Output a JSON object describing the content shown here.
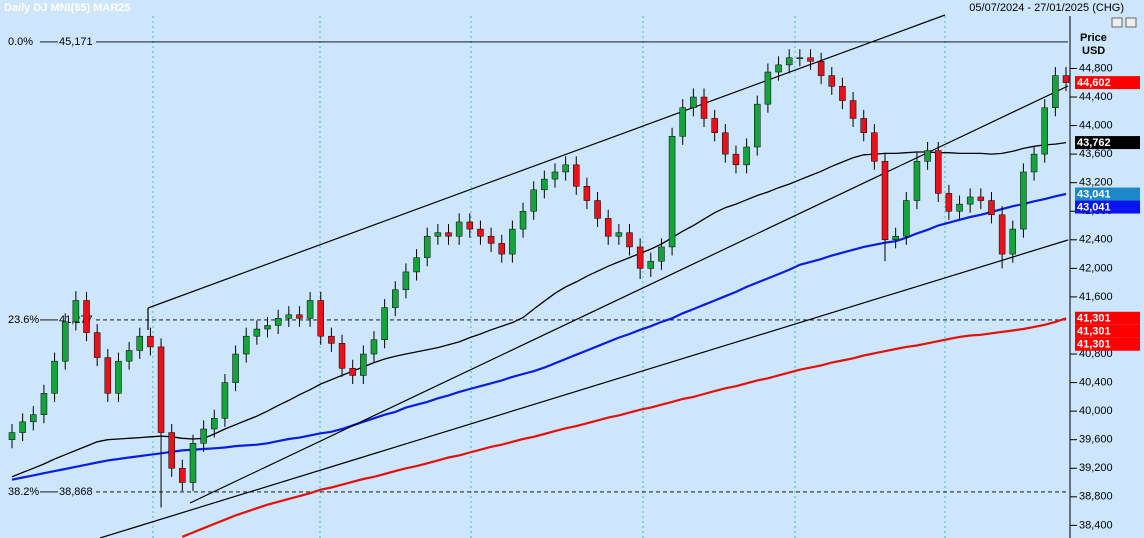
{
  "chart_data": {
    "type": "candlestick",
    "title": "Daily DJ MNI($5) MAR25",
    "date_range": "05/07/2024 - 27/01/2025 (CHG)",
    "y_axis_label": [
      "Price",
      "USD"
    ],
    "ylim": [
      38223,
      45759
    ],
    "yticks": [
      {
        "value": 38400,
        "label": "38,400"
      },
      {
        "value": 38800,
        "label": "38,800"
      },
      {
        "value": 39200,
        "label": "39,200"
      },
      {
        "value": 39600,
        "label": "39,600"
      },
      {
        "value": 40000,
        "label": "40,000"
      },
      {
        "value": 40400,
        "label": "40,400"
      },
      {
        "value": 40800,
        "label": "40,800"
      },
      {
        "value": 41600,
        "label": "41,600"
      },
      {
        "value": 42000,
        "label": "42,000"
      },
      {
        "value": 42400,
        "label": "42,400"
      },
      {
        "value": 42800,
        "label": "42,800"
      },
      {
        "value": 43200,
        "label": "43,200"
      },
      {
        "value": 43600,
        "label": "43,600"
      },
      {
        "value": 44000,
        "label": "44,000"
      },
      {
        "value": 44400,
        "label": "44,400"
      },
      {
        "value": 44800,
        "label": "44,800"
      }
    ],
    "up_color": "#16a33c",
    "down_color": "#e8121a",
    "open": [
      39600,
      39700,
      39850,
      39950,
      40250,
      40700,
      41250,
      41550,
      41100,
      40750,
      40250,
      40700,
      40850,
      41050,
      40900,
      39700,
      39200,
      39000,
      39550,
      39750,
      39900,
      40400,
      40800,
      41050,
      41150,
      41200,
      41300,
      41350,
      41300,
      41550,
      41050,
      40950,
      40600,
      40500,
      40800,
      41000,
      41450,
      41700,
      41950,
      42150,
      42450,
      42500,
      42450,
      42650,
      42550,
      42450,
      42350,
      42200,
      42550,
      42800,
      43100,
      43250,
      43350,
      43450,
      43150,
      42950,
      42700,
      42450,
      42500,
      42300,
      42000,
      42100,
      42300,
      43850,
      44250,
      44400,
      44100,
      43900,
      43600,
      43450,
      43700,
      44300,
      44750,
      44850,
      44950,
      44950,
      44900,
      44700,
      44550,
      44350,
      44100,
      43900,
      43500,
      42400,
      42450,
      42950,
      43500,
      43650,
      43050,
      42800,
      42900,
      43000,
      42950,
      42750,
      42200,
      42550,
      43350,
      43600,
      44250,
      44700
    ],
    "high": [
      39820,
      39970,
      40070,
      40370,
      40820,
      41370,
      41680,
      41670,
      41220,
      40870,
      40820,
      40970,
      41170,
      41170,
      41020,
      39820,
      39320,
      39670,
      39870,
      40020,
      40520,
      40920,
      41170,
      41270,
      41320,
      41420,
      41470,
      41470,
      41670,
      41670,
      41170,
      41070,
      40720,
      40920,
      41120,
      41570,
      41820,
      42070,
      42270,
      42570,
      42620,
      42620,
      42770,
      42770,
      42670,
      42570,
      42470,
      42670,
      42920,
      43220,
      43370,
      43470,
      43570,
      43570,
      43270,
      43070,
      42820,
      42620,
      42620,
      42420,
      42220,
      42420,
      43970,
      44370,
      44520,
      44520,
      44220,
      44020,
      43720,
      43820,
      44420,
      44870,
      44970,
      45070,
      45070,
      45070,
      45020,
      44820,
      44670,
      44470,
      44220,
      44020,
      43620,
      42570,
      43070,
      43620,
      43770,
      43770,
      43170,
      43020,
      43120,
      43120,
      43070,
      42870,
      42670,
      43470,
      43720,
      44370,
      44820,
      44820
    ],
    "low": [
      39480,
      39580,
      39730,
      39830,
      40130,
      40580,
      41130,
      40980,
      40630,
      40130,
      40130,
      40580,
      40730,
      40780,
      38650,
      39080,
      38880,
      38880,
      39430,
      39630,
      39780,
      40280,
      40680,
      40930,
      41030,
      41080,
      41180,
      41180,
      41180,
      40930,
      40830,
      40480,
      40380,
      40380,
      40680,
      40880,
      41330,
      41580,
      41830,
      42030,
      42330,
      42330,
      42330,
      42430,
      42330,
      42230,
      42080,
      42080,
      42430,
      42680,
      42980,
      43130,
      43230,
      43030,
      42830,
      42580,
      42330,
      42330,
      42180,
      41850,
      41880,
      41980,
      42180,
      43730,
      44130,
      43980,
      43780,
      43480,
      43330,
      43330,
      43580,
      44180,
      44630,
      44730,
      44830,
      44780,
      44580,
      44430,
      44230,
      43980,
      43780,
      43380,
      42100,
      42280,
      42330,
      42830,
      43380,
      42930,
      42680,
      42680,
      42780,
      42830,
      42630,
      42000,
      42080,
      42430,
      43230,
      43480,
      44130,
      44482
    ],
    "close": [
      39700,
      39850,
      39950,
      40250,
      40700,
      41250,
      41550,
      41100,
      40750,
      40250,
      40700,
      40850,
      41050,
      40900,
      39700,
      39200,
      39000,
      39550,
      39750,
      39900,
      40400,
      40800,
      41050,
      41150,
      41200,
      41300,
      41350,
      41300,
      41550,
      41050,
      40950,
      40600,
      40500,
      40800,
      41000,
      41450,
      41700,
      41950,
      42150,
      42450,
      42500,
      42450,
      42650,
      42550,
      42450,
      42350,
      42200,
      42550,
      42800,
      43100,
      43250,
      43350,
      43450,
      43150,
      42950,
      42700,
      42450,
      42500,
      42300,
      42000,
      42100,
      42300,
      43850,
      44250,
      44400,
      44100,
      43900,
      43600,
      43450,
      43700,
      44300,
      44750,
      44850,
      44950,
      44950,
      44900,
      44700,
      44550,
      44350,
      44100,
      43900,
      43500,
      42400,
      42450,
      42950,
      43500,
      43650,
      43050,
      42800,
      42900,
      43000,
      42950,
      42750,
      42200,
      42550,
      43350,
      43600,
      44250,
      44700,
      44602
    ],
    "series": [
      {
        "color": "#000000",
        "values": [
          39080,
          39140,
          39200,
          39260,
          39330,
          39390,
          39450,
          39510,
          39570,
          39600,
          39610,
          39620,
          39630,
          39640,
          39650,
          39640,
          39620,
          39610,
          39620,
          39680,
          39750,
          39810,
          39870,
          39930,
          40000,
          40080,
          40150,
          40230,
          40300,
          40380,
          40440,
          40500,
          40560,
          40620,
          40680,
          40730,
          40770,
          40800,
          40830,
          40860,
          40890,
          40930,
          40970,
          41030,
          41080,
          41140,
          41190,
          41240,
          41310,
          41430,
          41540,
          41650,
          41740,
          41810,
          41890,
          41960,
          42030,
          42090,
          42150,
          42210,
          42270,
          42340,
          42430,
          42520,
          42600,
          42690,
          42780,
          42850,
          42900,
          42960,
          43020,
          43070,
          43130,
          43180,
          43240,
          43300,
          43360,
          43430,
          43490,
          43550,
          43590,
          43600,
          43610,
          43610,
          43620,
          43630,
          43630,
          43620,
          43620,
          43610,
          43610,
          43610,
          43600,
          43610,
          43640,
          43680,
          43710,
          43730,
          43740,
          43762
        ]
      },
      {
        "color": "#0a1ee0",
        "values": [
          39040,
          39070,
          39100,
          39130,
          39160,
          39190,
          39220,
          39250,
          39280,
          39310,
          39330,
          39350,
          39370,
          39390,
          39410,
          39430,
          39450,
          39460,
          39470,
          39480,
          39490,
          39510,
          39520,
          39530,
          39550,
          39580,
          39610,
          39630,
          39660,
          39690,
          39710,
          39750,
          39800,
          39850,
          39900,
          39950,
          39990,
          40050,
          40090,
          40130,
          40180,
          40220,
          40270,
          40310,
          40350,
          40390,
          40430,
          40480,
          40520,
          40560,
          40610,
          40670,
          40730,
          40790,
          40850,
          40910,
          40970,
          41030,
          41080,
          41140,
          41190,
          41250,
          41300,
          41370,
          41430,
          41490,
          41550,
          41610,
          41670,
          41740,
          41800,
          41860,
          41920,
          41980,
          42050,
          42090,
          42130,
          42180,
          42220,
          42260,
          42300,
          42330,
          42360,
          42380,
          42430,
          42490,
          42540,
          42600,
          42640,
          42680,
          42720,
          42750,
          42790,
          42830,
          42870,
          42900,
          42940,
          42970,
          43010,
          43041
        ]
      },
      {
        "color": "#e4100c",
        "values": [
          null,
          null,
          null,
          null,
          null,
          null,
          null,
          null,
          null,
          null,
          null,
          null,
          null,
          null,
          null,
          null,
          38240,
          38300,
          38360,
          38420,
          38480,
          38540,
          38590,
          38640,
          38690,
          38730,
          38770,
          38810,
          38850,
          38900,
          38930,
          38970,
          39010,
          39050,
          39080,
          39120,
          39160,
          39200,
          39230,
          39270,
          39310,
          39350,
          39380,
          39420,
          39460,
          39500,
          39530,
          39570,
          39610,
          39640,
          39680,
          39720,
          39760,
          39790,
          39830,
          39870,
          39910,
          39940,
          39980,
          40020,
          40050,
          40090,
          40130,
          40170,
          40200,
          40240,
          40280,
          40320,
          40350,
          40390,
          40430,
          40460,
          40500,
          40540,
          40580,
          40610,
          40640,
          40680,
          40710,
          40740,
          40780,
          40810,
          40840,
          40870,
          40900,
          40920,
          40950,
          40980,
          41010,
          41040,
          41060,
          41070,
          41090,
          41110,
          41130,
          41150,
          41180,
          41210,
          41250,
          41301
        ]
      }
    ],
    "fib_levels": [
      {
        "name": "0.0%",
        "value": {
          "value": 45171,
          "label": "45,171"
        },
        "style": "solid"
      },
      {
        "name": "23.6%",
        "value": {
          "value": 41277,
          "label": "41,277"
        },
        "style": "dashed"
      },
      {
        "name": "38.2%",
        "value": {
          "value": 38868,
          "label": "38,868"
        },
        "style": "dashed"
      }
    ],
    "price_labels": [
      {
        "value": {
          "value": 44602,
          "label": "44,602"
        },
        "color": "#ff0000",
        "text_color": "#ffffff"
      },
      {
        "value": {
          "value": 43762,
          "label": "43,762"
        },
        "color": "#000000",
        "text_color": "#ffffff"
      },
      {
        "value": {
          "value": 43041,
          "label": "43,041"
        },
        "color": "#1c88c8",
        "text_color": "#ffffff"
      },
      {
        "value": {
          "value": 43041,
          "label": "43,041"
        },
        "color": "#0a14f0",
        "text_color": "#ffffff"
      },
      {
        "value": {
          "value": 41301,
          "label": "41,301"
        },
        "color": "#ff0000",
        "text_color": "#ffffff"
      },
      {
        "value": {
          "value": 41301,
          "label": "41,301"
        },
        "color": "#ff0000",
        "text_color": "#ffffff"
      },
      {
        "value": {
          "value": 41301,
          "label": "41,301"
        },
        "color": "#ff0000",
        "text_color": "#ffffff"
      }
    ]
  }
}
